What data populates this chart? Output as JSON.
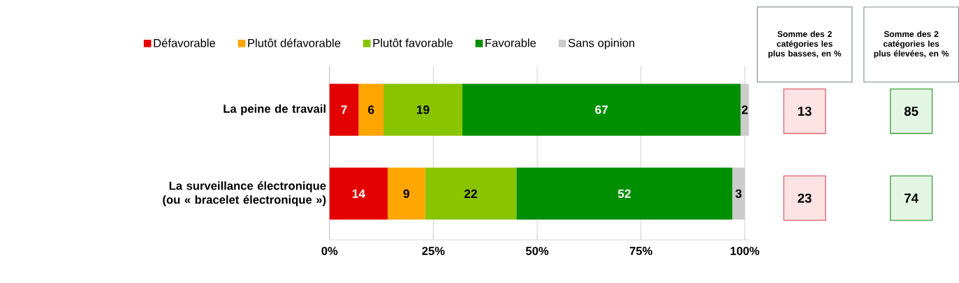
{
  "chart_data": {
    "type": "bar",
    "orientation": "horizontal",
    "stacked": true,
    "categories": [
      "La peine de travail",
      "La surveillance électronique (ou « bracelet électronique »)"
    ],
    "series": [
      {
        "name": "Défavorable",
        "color": "#e30000",
        "values": [
          7,
          14
        ]
      },
      {
        "name": "Plutôt défavorable",
        "color": "#ffa500",
        "values": [
          6,
          9
        ]
      },
      {
        "name": "Plutôt favorable",
        "color": "#88c400",
        "values": [
          19,
          22
        ]
      },
      {
        "name": "Favorable",
        "color": "#008f00",
        "values": [
          67,
          52
        ]
      },
      {
        "name": "Sans opinion",
        "color": "#cccccc",
        "values": [
          2,
          3
        ]
      }
    ],
    "xlim": [
      0,
      101
    ],
    "xticks": [
      {
        "value": 0,
        "label": "0%"
      },
      {
        "value": 25,
        "label": "25%"
      },
      {
        "value": 50,
        "label": "50%"
      },
      {
        "value": 75,
        "label": "75%"
      },
      {
        "value": 100,
        "label": "100%"
      }
    ],
    "grid": "x",
    "legend": "top",
    "data_labels": true,
    "annotations": [
      "Somme des 2 catégories les plus basses, en %",
      "Somme des 2 catégories les plus élevées, en %",
      "13",
      "85",
      "23",
      "74"
    ]
  }
}
